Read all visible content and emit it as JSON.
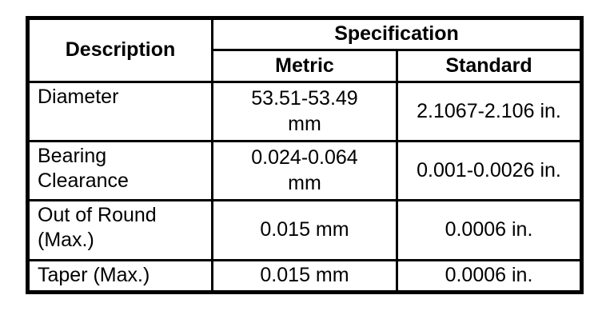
{
  "table": {
    "header": {
      "description": "Description",
      "specification": "Specification",
      "metric": "Metric",
      "standard": "Standard"
    },
    "rows": [
      {
        "description": "Diameter",
        "metric": "53.51-53.49\nmm",
        "standard": "2.1067-2.106 in."
      },
      {
        "description": "Bearing\nClearance",
        "metric": "0.024-0.064\nmm",
        "standard": "0.001-0.0026 in."
      },
      {
        "description": "Out of Round\n(Max.)",
        "metric": "0.015 mm",
        "standard": "0.0006 in."
      },
      {
        "description": "Taper (Max.)",
        "metric": "0.015 mm",
        "standard": "0.0006 in."
      }
    ],
    "colors": {
      "border": "#000000",
      "background": "#ffffff",
      "text": "#000000"
    }
  }
}
